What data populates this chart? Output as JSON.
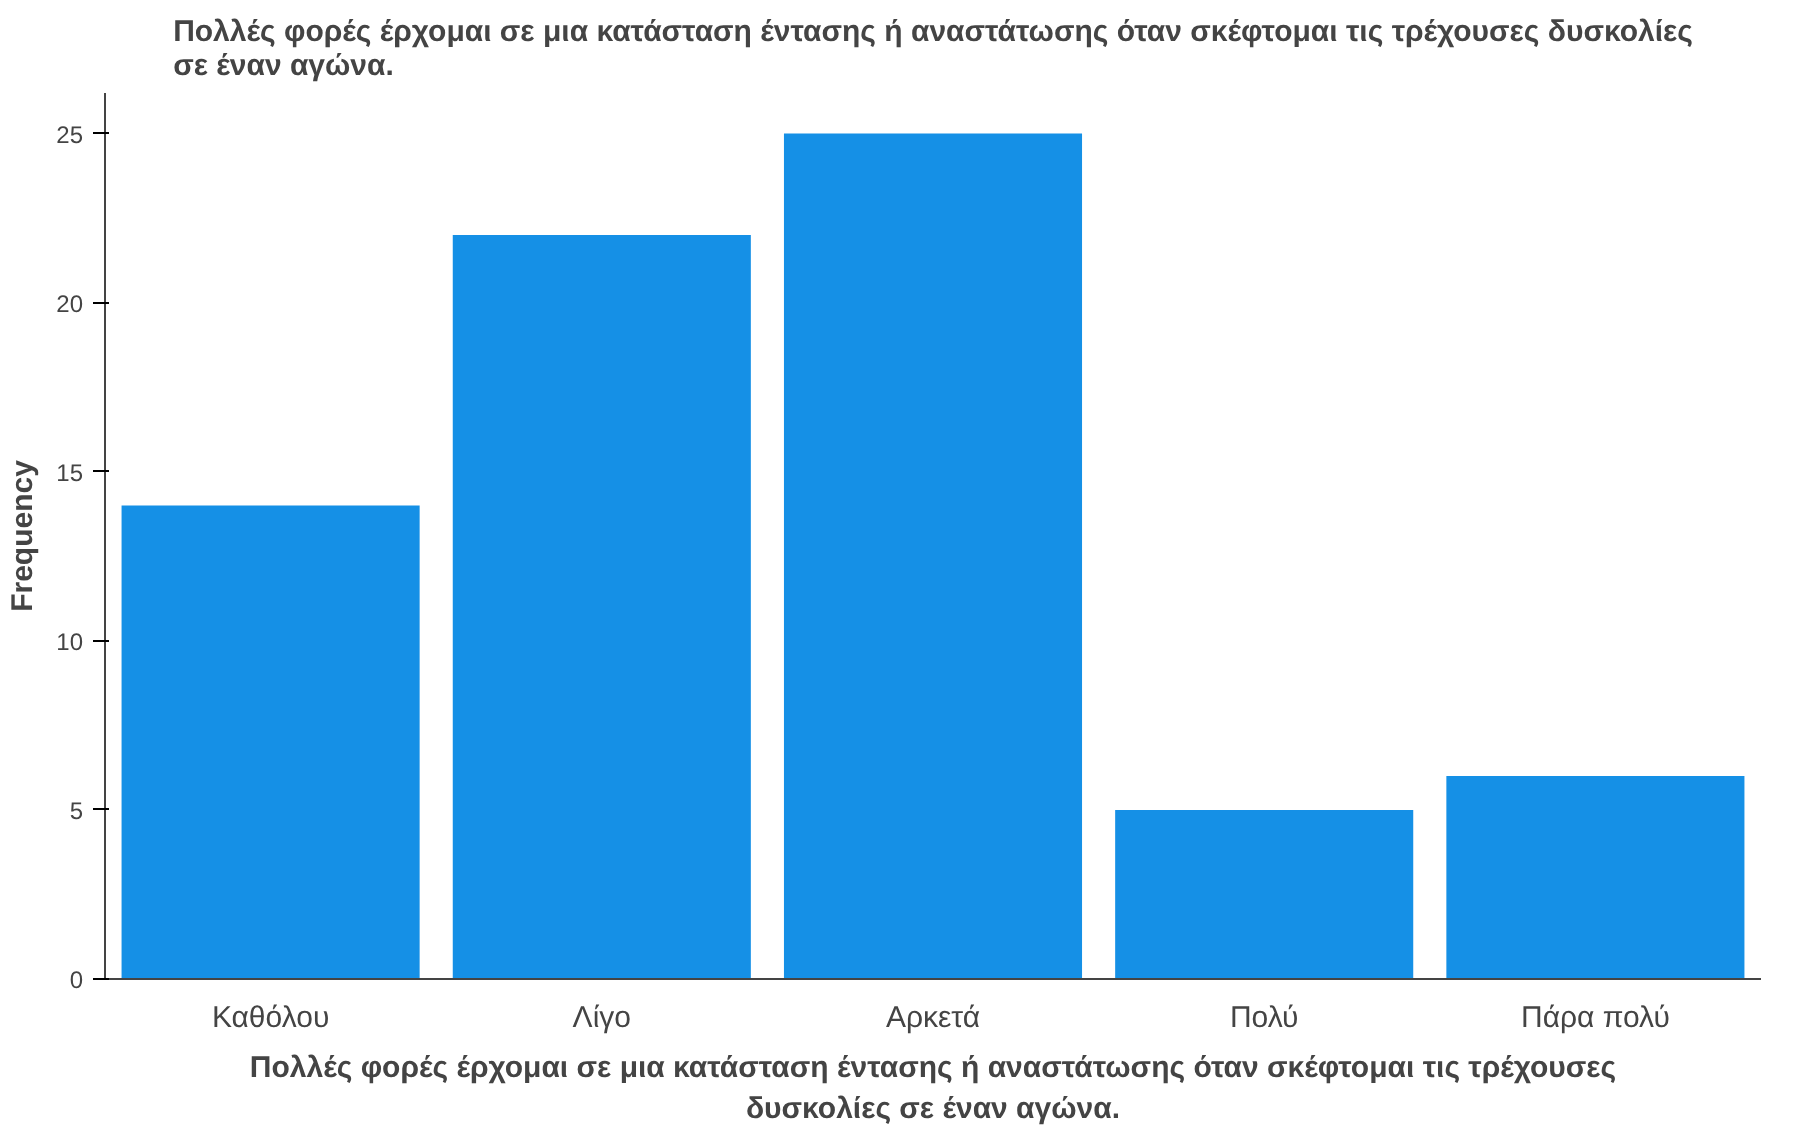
{
  "chart_data": {
    "type": "bar",
    "title": "Πολλές φορές έρχομαι σε μια κατάσταση έντασης ή αναστάτωσης όταν σκέφτομαι τις τρέχουσες δυσκολίες σε έναν αγώνα.",
    "xlabel": "Πολλές φορές έρχομαι σε μια κατάσταση έντασης ή αναστάτωσης όταν σκέφτομαι τις τρέχουσες δυσκολίες σε έναν αγώνα.",
    "ylabel": "Frequency",
    "categories": [
      "Καθόλου",
      "Λίγο",
      "Αρκετά",
      "Πολύ",
      "Πάρα πολύ"
    ],
    "values": [
      14,
      22,
      25,
      5,
      6
    ],
    "color": "#1590e6",
    "ylim": [
      0,
      26.2
    ],
    "yticks": [
      0,
      5,
      10,
      15,
      20,
      25
    ],
    "grid": false
  }
}
